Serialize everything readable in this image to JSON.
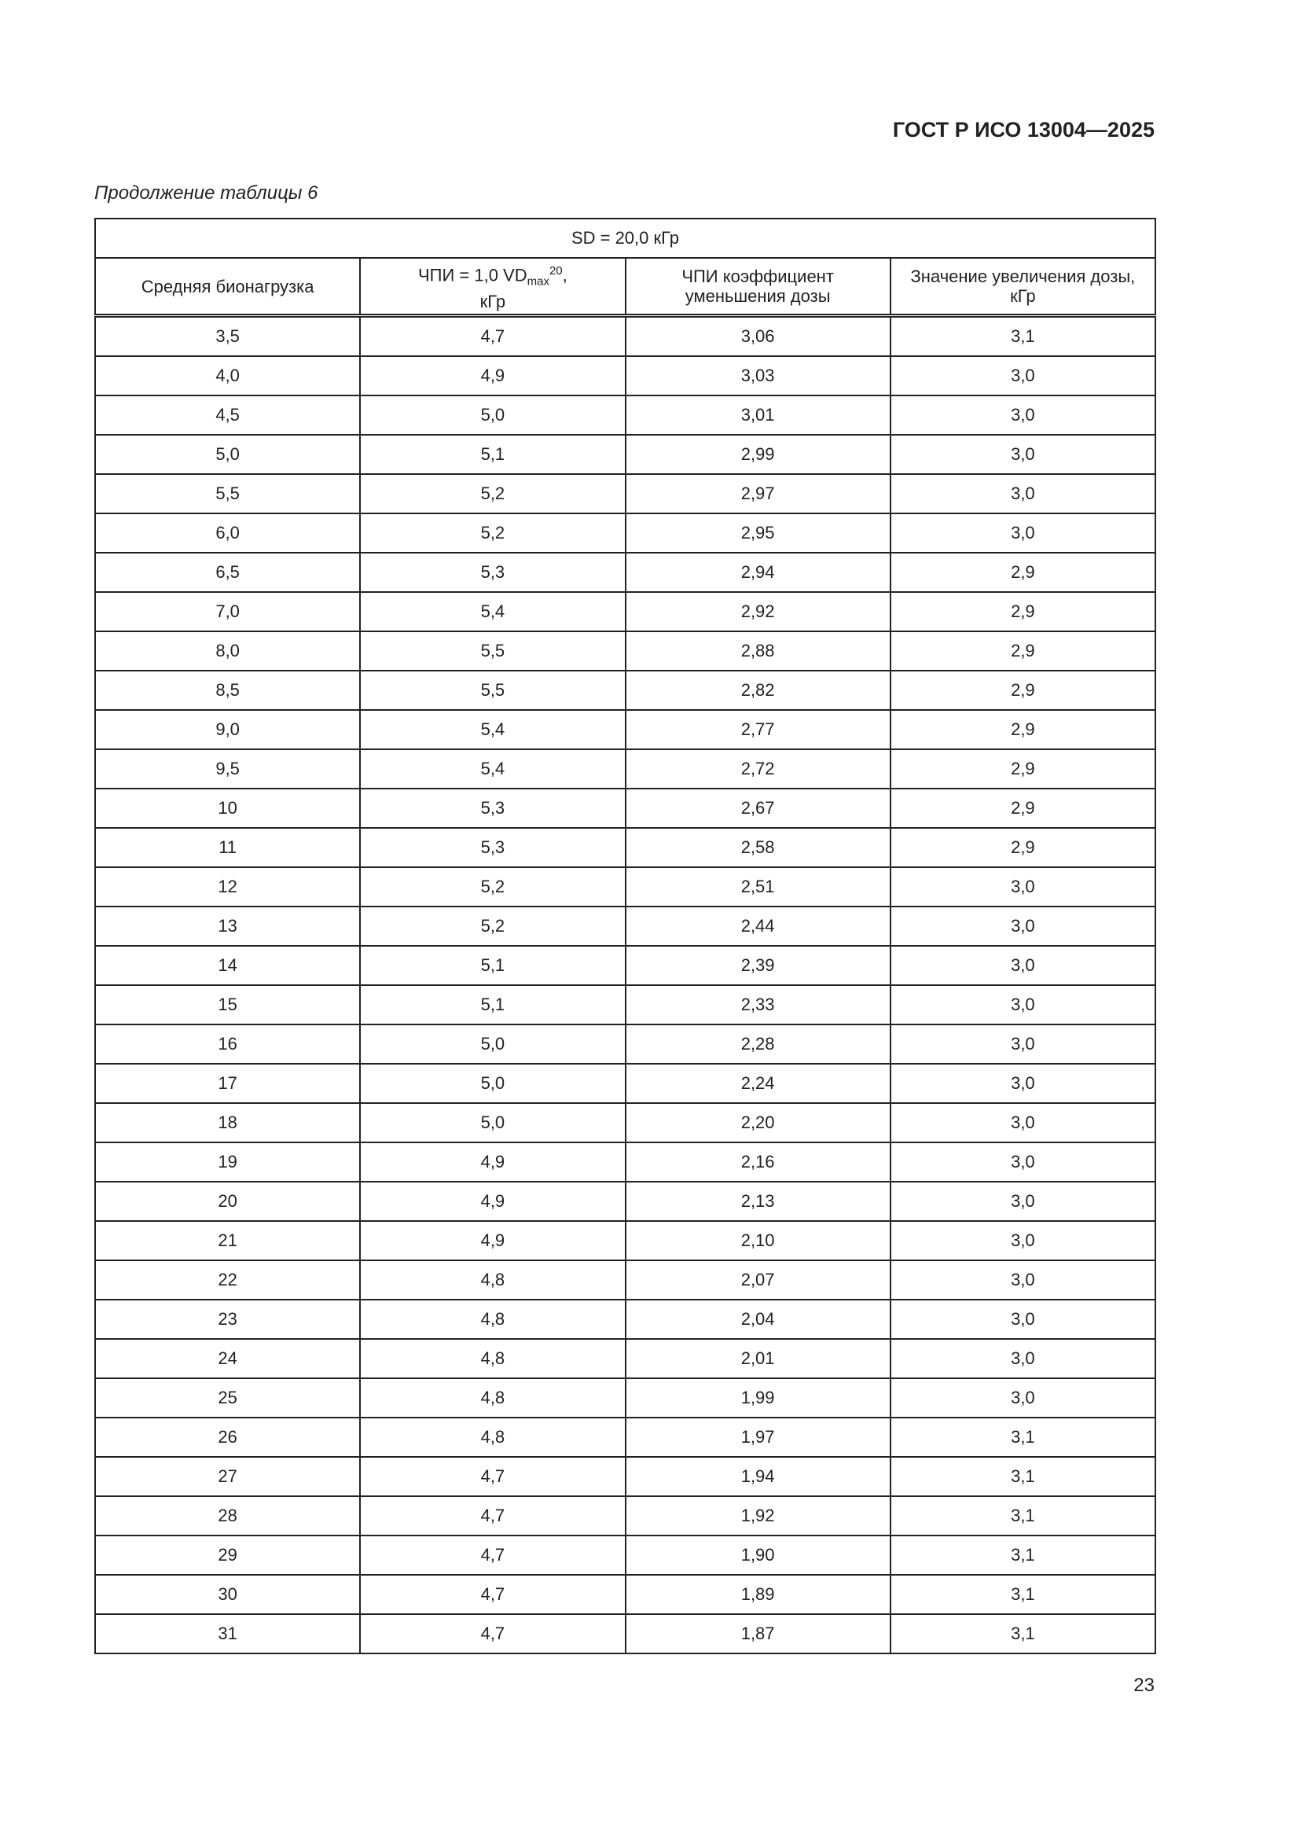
{
  "header": {
    "doc_id": "ГОСТ Р ИСО 13004—2025"
  },
  "caption": "Продолжение таблицы 6",
  "table": {
    "span_title": "SD = 20,0 кГр",
    "columns": {
      "c1": "Средняя бионагрузка",
      "c2_main": "ЧПИ = 1,0 VD",
      "c2_sub": "max",
      "c2_sup": "20",
      "c2_tail": ",",
      "c2_unit": "кГр",
      "c3_line1": "ЧПИ коэффициент",
      "c3_line2": "уменьшения дозы",
      "c4_line1": "Значение увеличения дозы,",
      "c4_line2": "кГр"
    },
    "rows": [
      [
        "3,5",
        "4,7",
        "3,06",
        "3,1"
      ],
      [
        "4,0",
        "4,9",
        "3,03",
        "3,0"
      ],
      [
        "4,5",
        "5,0",
        "3,01",
        "3,0"
      ],
      [
        "5,0",
        "5,1",
        "2,99",
        "3,0"
      ],
      [
        "5,5",
        "5,2",
        "2,97",
        "3,0"
      ],
      [
        "6,0",
        "5,2",
        "2,95",
        "3,0"
      ],
      [
        "6,5",
        "5,3",
        "2,94",
        "2,9"
      ],
      [
        "7,0",
        "5,4",
        "2,92",
        "2,9"
      ],
      [
        "8,0",
        "5,5",
        "2,88",
        "2,9"
      ],
      [
        "8,5",
        "5,5",
        "2,82",
        "2,9"
      ],
      [
        "9,0",
        "5,4",
        "2,77",
        "2,9"
      ],
      [
        "9,5",
        "5,4",
        "2,72",
        "2,9"
      ],
      [
        "10",
        "5,3",
        "2,67",
        "2,9"
      ],
      [
        "11",
        "5,3",
        "2,58",
        "2,9"
      ],
      [
        "12",
        "5,2",
        "2,51",
        "3,0"
      ],
      [
        "13",
        "5,2",
        "2,44",
        "3,0"
      ],
      [
        "14",
        "5,1",
        "2,39",
        "3,0"
      ],
      [
        "15",
        "5,1",
        "2,33",
        "3,0"
      ],
      [
        "16",
        "5,0",
        "2,28",
        "3,0"
      ],
      [
        "17",
        "5,0",
        "2,24",
        "3,0"
      ],
      [
        "18",
        "5,0",
        "2,20",
        "3,0"
      ],
      [
        "19",
        "4,9",
        "2,16",
        "3,0"
      ],
      [
        "20",
        "4,9",
        "2,13",
        "3,0"
      ],
      [
        "21",
        "4,9",
        "2,10",
        "3,0"
      ],
      [
        "22",
        "4,8",
        "2,07",
        "3,0"
      ],
      [
        "23",
        "4,8",
        "2,04",
        "3,0"
      ],
      [
        "24",
        "4,8",
        "2,01",
        "3,0"
      ],
      [
        "25",
        "4,8",
        "1,99",
        "3,0"
      ],
      [
        "26",
        "4,8",
        "1,97",
        "3,1"
      ],
      [
        "27",
        "4,7",
        "1,94",
        "3,1"
      ],
      [
        "28",
        "4,7",
        "1,92",
        "3,1"
      ],
      [
        "29",
        "4,7",
        "1,90",
        "3,1"
      ],
      [
        "30",
        "4,7",
        "1,89",
        "3,1"
      ],
      [
        "31",
        "4,7",
        "1,87",
        "3,1"
      ]
    ]
  },
  "page_number": "23"
}
